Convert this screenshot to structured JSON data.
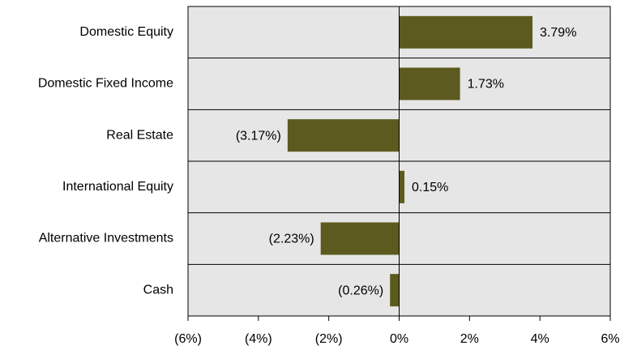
{
  "chart_data": {
    "type": "bar",
    "orientation": "horizontal",
    "categories": [
      "Domestic Equity",
      "Domestic Fixed Income",
      "Real Estate",
      "International Equity",
      "Alternative Investments",
      "Cash"
    ],
    "values": [
      3.79,
      1.73,
      -3.17,
      0.15,
      -2.23,
      -0.26
    ],
    "value_labels": [
      "3.79%",
      "1.73%",
      "(3.17%)",
      "0.15%",
      "(2.23%)",
      "(0.26%)"
    ],
    "color": "#5c5a1e",
    "negative_label_color": "#ff0000",
    "background": "#e6e6e6",
    "xlim": [
      -6,
      6
    ],
    "xticks": [
      {
        "value": -6,
        "label": "(6%)"
      },
      {
        "value": -4,
        "label": "(4%)"
      },
      {
        "value": -2,
        "label": "(2%)"
      },
      {
        "value": 0,
        "label": "0%"
      },
      {
        "value": 2,
        "label": "2%"
      },
      {
        "value": 4,
        "label": "4%"
      },
      {
        "value": 6,
        "label": "6%"
      }
    ]
  }
}
